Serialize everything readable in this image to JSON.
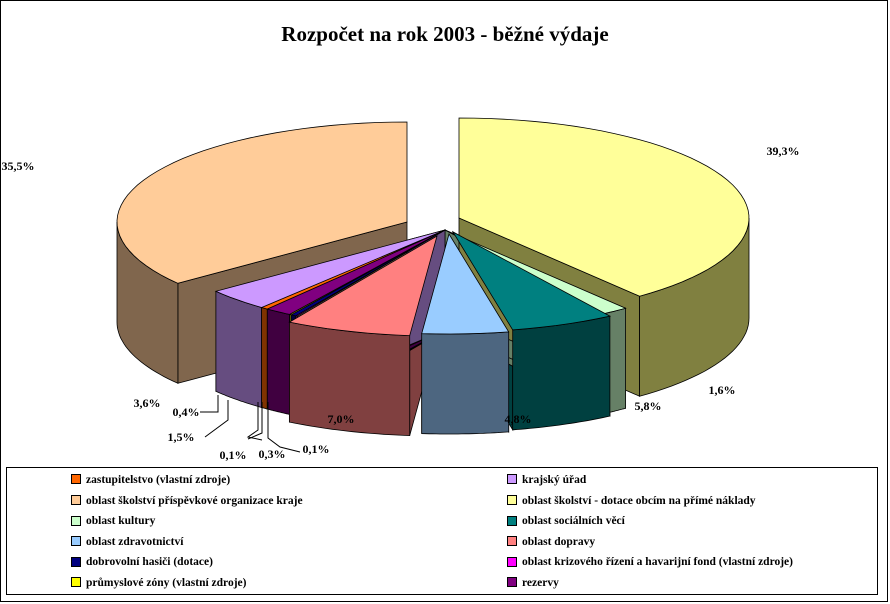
{
  "chart_data": {
    "type": "pie",
    "title": "Rozpočet na rok 2003 - běžné výdaje",
    "slices": [
      {
        "name": "oblast školství - dotace obcím na přímé náklady",
        "value": 39.3,
        "label": "39,3%",
        "color": "#FFFF99",
        "side": "#808040"
      },
      {
        "name": "oblast kultury",
        "value": 1.6,
        "label": "1,6%",
        "color": "#CCFFCC",
        "side": "#668066"
      },
      {
        "name": "oblast sociálních věcí",
        "value": 5.8,
        "label": "5,8%",
        "color": "#008080",
        "side": "#004040"
      },
      {
        "name": "oblast zdravotnictví",
        "value": 4.8,
        "label": "4,8%",
        "color": "#99CCFF",
        "side": "#4D6680"
      },
      {
        "name": "oblast dopravy",
        "value": 7.0,
        "label": "7,0%",
        "color": "#FF8080",
        "side": "#804040"
      },
      {
        "name": "oblast krizového řízení a havarijní fond (vlastní zdroje)",
        "value": 0.1,
        "label": "0,1%",
        "color": "#FF00FF",
        "side": "#800080"
      },
      {
        "name": "dobrovolní hasiči (dotace)",
        "value": 0.3,
        "label": "0,3%",
        "color": "#000080",
        "side": "#000040"
      },
      {
        "name": "průmyslové zóny (vlastní zdroje)",
        "value": 0.1,
        "label": "0,1%",
        "color": "#FFFF00",
        "side": "#808000"
      },
      {
        "name": "rezervy",
        "value": 1.5,
        "label": "1,5%",
        "color": "#800080",
        "side": "#400040"
      },
      {
        "name": "zastupitelstvo (vlastní zdroje)",
        "value": 0.4,
        "label": "0,4%",
        "color": "#FF6600",
        "side": "#803300"
      },
      {
        "name": "krajský úřad",
        "value": 3.6,
        "label": "3,6%",
        "color": "#CC99FF",
        "side": "#664D80"
      },
      {
        "name": "oblast školství příspěvkové organizace kraje",
        "value": 35.5,
        "label": "35,5%",
        "color": "#FFCC99",
        "side": "#80664D"
      }
    ],
    "legend": [
      {
        "label": "zastupitelstvo (vlastní zdroje)",
        "color": "#FF6600"
      },
      {
        "label": "krajský úřad",
        "color": "#CC99FF"
      },
      {
        "label": "oblast školství příspěvkové organizace kraje",
        "color": "#FFCC99"
      },
      {
        "label": "oblast školství - dotace obcím na přímé náklady",
        "color": "#FFFF99"
      },
      {
        "label": "oblast kultury",
        "color": "#CCFFCC"
      },
      {
        "label": "oblast sociálních věcí",
        "color": "#008080"
      },
      {
        "label": "oblast zdravotnictví",
        "color": "#99CCFF"
      },
      {
        "label": "oblast dopravy",
        "color": "#FF8080"
      },
      {
        "label": "dobrovolní hasiči (dotace)",
        "color": "#000080"
      },
      {
        "label": "oblast krizového řízení a havarijní fond (vlastní zdroje)",
        "color": "#FF00FF"
      },
      {
        "label": "průmyslové zóny (vlastní zdroje)",
        "color": "#FFFF00"
      },
      {
        "label": "rezervy",
        "color": "#800080"
      }
    ],
    "legend_position": "bottom"
  }
}
